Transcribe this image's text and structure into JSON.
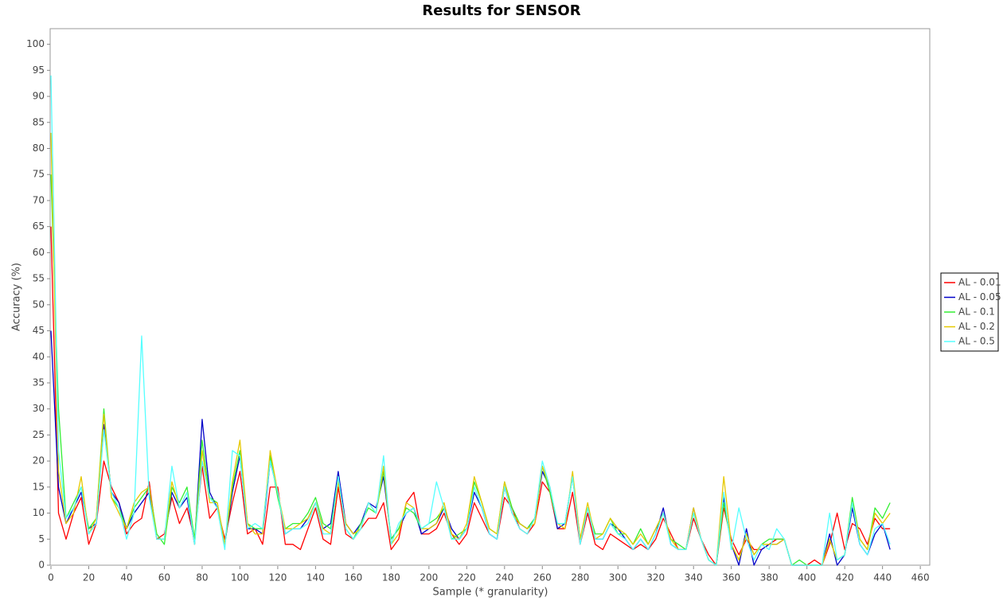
{
  "chart_data": {
    "type": "line",
    "title": "Results for SENSOR",
    "x_label": "Sample (* granularity)",
    "y_label": "Accuracy (%)",
    "xlim": [
      0,
      465
    ],
    "ylim": [
      0,
      103
    ],
    "xticks": [
      0,
      20,
      40,
      60,
      80,
      100,
      120,
      140,
      160,
      180,
      200,
      220,
      240,
      260,
      280,
      300,
      320,
      340,
      360,
      380,
      400,
      420,
      440,
      460
    ],
    "yticks": [
      0,
      5,
      10,
      15,
      20,
      25,
      30,
      35,
      40,
      45,
      50,
      55,
      60,
      65,
      70,
      75,
      80,
      85,
      90,
      95,
      100
    ],
    "grid": false,
    "legend": "right",
    "x": [
      0,
      4,
      8,
      12,
      16,
      20,
      24,
      28,
      32,
      36,
      40,
      44,
      48,
      52,
      56,
      60,
      64,
      68,
      72,
      76,
      80,
      84,
      88,
      92,
      96,
      100,
      104,
      108,
      112,
      116,
      120,
      124,
      128,
      132,
      136,
      140,
      144,
      148,
      152,
      156,
      160,
      164,
      168,
      172,
      176,
      180,
      184,
      188,
      192,
      196,
      200,
      204,
      208,
      212,
      216,
      220,
      224,
      228,
      232,
      236,
      240,
      244,
      248,
      252,
      256,
      260,
      264,
      268,
      272,
      276,
      280,
      284,
      288,
      292,
      296,
      300,
      304,
      308,
      312,
      316,
      320,
      324,
      328,
      332,
      336,
      340,
      344,
      348,
      352,
      356,
      360,
      364,
      368,
      372,
      376,
      380,
      384,
      388,
      392,
      396,
      400,
      404,
      408,
      412,
      416,
      420,
      424,
      428,
      432,
      436,
      440,
      444
    ],
    "series": [
      {
        "name": "AL - 0.01",
        "color": "#ff0000",
        "values": [
          65,
          10,
          5,
          10,
          13,
          4,
          8,
          20,
          15,
          12,
          6,
          8,
          9,
          16,
          5,
          6,
          13,
          8,
          11,
          5,
          19,
          9,
          11,
          5,
          12,
          18,
          6,
          7,
          4,
          15,
          15,
          4,
          4,
          3,
          7,
          11,
          5,
          4,
          15,
          6,
          5,
          7,
          9,
          9,
          12,
          3,
          5,
          12,
          14,
          6,
          6,
          7,
          10,
          6,
          4,
          6,
          12,
          9,
          6,
          5,
          13,
          11,
          7,
          6,
          8,
          16,
          14,
          7,
          7,
          14,
          4,
          10,
          4,
          3,
          6,
          5,
          4,
          3,
          4,
          3,
          5,
          9,
          6,
          3,
          3,
          9,
          5,
          2,
          0,
          11,
          5,
          2,
          5,
          3,
          3,
          4,
          5,
          5,
          0,
          0,
          0,
          1,
          0,
          4,
          10,
          3,
          8,
          7,
          4,
          9,
          7,
          7
        ]
      },
      {
        "name": "AL - 0.05",
        "color": "#0000c8",
        "values": [
          45,
          15,
          8,
          11,
          14,
          7,
          8,
          27,
          14,
          12,
          7,
          10,
          12,
          14,
          5,
          5,
          14,
          11,
          13,
          4,
          28,
          14,
          11,
          4,
          14,
          21,
          7,
          7,
          6,
          20,
          14,
          6,
          7,
          7,
          9,
          12,
          7,
          8,
          18,
          8,
          6,
          8,
          12,
          11,
          17,
          5,
          7,
          10,
          11,
          6,
          7,
          8,
          11,
          7,
          5,
          7,
          14,
          11,
          6,
          5,
          15,
          10,
          8,
          7,
          9,
          18,
          15,
          7,
          8,
          17,
          5,
          11,
          5,
          5,
          8,
          7,
          5,
          3,
          5,
          3,
          6,
          11,
          4,
          3,
          3,
          11,
          5,
          1,
          0,
          13,
          4,
          0,
          7,
          0,
          3,
          4,
          4,
          5,
          0,
          0,
          0,
          0,
          0,
          6,
          0,
          2,
          11,
          4,
          2,
          6,
          8,
          3
        ]
      },
      {
        "name": "AL - 0.1",
        "color": "#33ee33",
        "values": [
          75,
          30,
          9,
          12,
          15,
          7,
          9,
          30,
          13,
          11,
          7,
          11,
          13,
          15,
          6,
          4,
          15,
          12,
          15,
          5,
          24,
          13,
          12,
          4,
          15,
          22,
          8,
          7,
          7,
          21,
          13,
          7,
          8,
          8,
          10,
          13,
          8,
          7,
          17,
          7,
          5,
          8,
          11,
          10,
          18,
          5,
          7,
          11,
          10,
          7,
          8,
          9,
          11,
          5,
          6,
          7,
          16,
          12,
          7,
          6,
          16,
          11,
          8,
          7,
          9,
          19,
          14,
          8,
          8,
          17,
          5,
          11,
          6,
          6,
          9,
          6,
          6,
          4,
          7,
          4,
          7,
          10,
          5,
          4,
          3,
          10,
          5,
          1,
          0,
          12,
          4,
          1,
          6,
          2,
          4,
          5,
          5,
          5,
          0,
          1,
          0,
          0,
          0,
          5,
          1,
          2,
          13,
          5,
          3,
          11,
          9,
          12
        ]
      },
      {
        "name": "AL - 0.2",
        "color": "#e6c800",
        "values": [
          83,
          18,
          8,
          10,
          17,
          6,
          9,
          29,
          13,
          10,
          7,
          12,
          14,
          15,
          5,
          5,
          16,
          11,
          14,
          4,
          22,
          12,
          12,
          4,
          16,
          24,
          8,
          6,
          6,
          22,
          14,
          7,
          7,
          8,
          9,
          12,
          7,
          6,
          16,
          8,
          6,
          7,
          12,
          10,
          19,
          4,
          6,
          12,
          11,
          7,
          7,
          8,
          12,
          6,
          5,
          8,
          17,
          12,
          7,
          6,
          16,
          10,
          8,
          7,
          8,
          19,
          15,
          8,
          7,
          18,
          5,
          12,
          5,
          6,
          9,
          7,
          6,
          4,
          6,
          4,
          7,
          10,
          5,
          3,
          3,
          11,
          5,
          1,
          0,
          17,
          4,
          1,
          6,
          2,
          4,
          4,
          4,
          5,
          0,
          0,
          0,
          0,
          0,
          5,
          1,
          2,
          12,
          5,
          3,
          10,
          8,
          10
        ]
      },
      {
        "name": "AL - 0.5",
        "color": "#55ffff",
        "values": [
          94,
          22,
          9,
          11,
          15,
          6,
          8,
          26,
          14,
          11,
          5,
          10,
          44,
          13,
          5,
          5,
          19,
          11,
          14,
          4,
          20,
          13,
          11,
          3,
          22,
          21,
          7,
          8,
          7,
          20,
          14,
          6,
          7,
          7,
          8,
          12,
          6,
          6,
          17,
          7,
          5,
          7,
          12,
          10,
          21,
          4,
          8,
          10,
          11,
          7,
          8,
          16,
          11,
          5,
          5,
          7,
          15,
          11,
          6,
          5,
          15,
          10,
          7,
          6,
          9,
          20,
          15,
          8,
          8,
          17,
          4,
          11,
          5,
          5,
          8,
          6,
          5,
          3,
          5,
          3,
          6,
          10,
          4,
          3,
          3,
          10,
          5,
          1,
          0,
          14,
          3,
          11,
          5,
          1,
          4,
          3,
          7,
          5,
          0,
          0,
          0,
          0,
          0,
          10,
          1,
          2,
          12,
          4,
          2,
          7,
          8,
          4
        ]
      }
    ]
  }
}
